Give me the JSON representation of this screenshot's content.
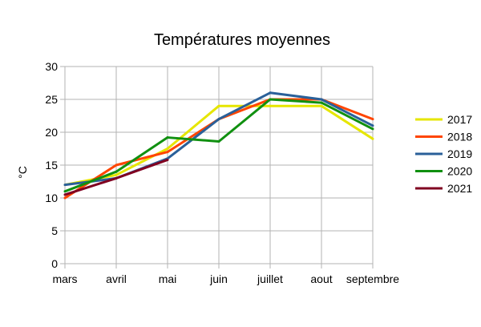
{
  "chart_data": {
    "type": "line",
    "title": "Températures moyennes",
    "xlabel": "",
    "ylabel": "°C",
    "ylim": [
      0,
      30
    ],
    "yticks": [
      0,
      5,
      10,
      15,
      20,
      25,
      30
    ],
    "grid": true,
    "legend_position": "right",
    "categories": [
      "mars",
      "avril",
      "mai",
      "juin",
      "juillet",
      "aout",
      "septembre"
    ],
    "series": [
      {
        "name": "2017",
        "color": "#e6e600",
        "values": [
          12,
          13.5,
          17.5,
          24,
          24,
          24,
          19
        ]
      },
      {
        "name": "2018",
        "color": "#ff4500",
        "values": [
          10,
          15,
          17,
          22,
          25,
          25,
          22
        ]
      },
      {
        "name": "2019",
        "color": "#2a6099",
        "values": [
          12,
          13,
          16,
          22,
          26,
          25,
          21
        ]
      },
      {
        "name": "2020",
        "color": "#109010",
        "values": [
          11,
          14,
          19.2,
          18.6,
          25,
          24.5,
          20.5
        ]
      },
      {
        "name": "2021",
        "color": "#800020",
        "values": [
          10.5,
          13,
          15.8,
          null,
          null,
          null,
          null
        ]
      }
    ]
  }
}
